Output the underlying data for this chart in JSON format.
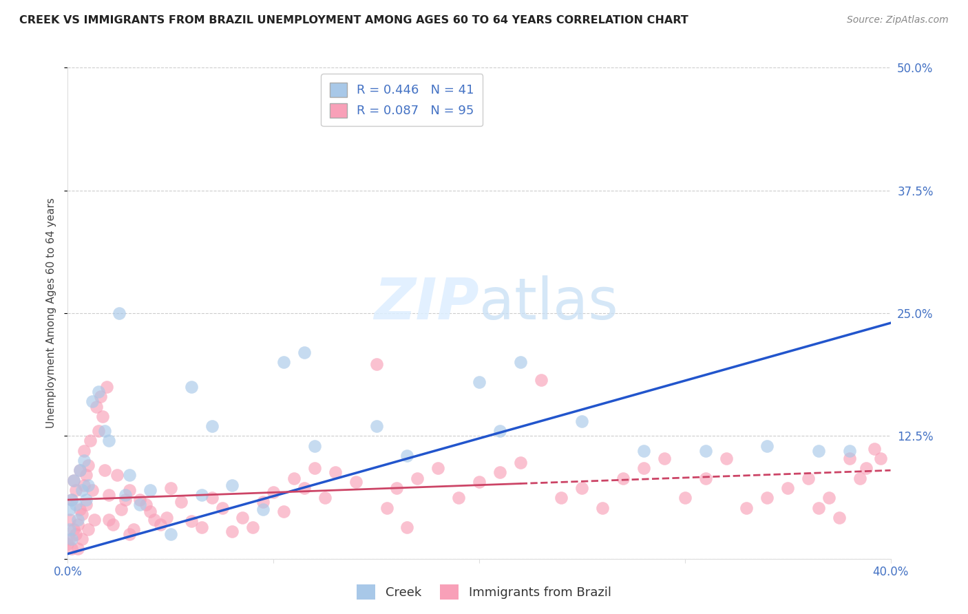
{
  "title": "CREEK VS IMMIGRANTS FROM BRAZIL UNEMPLOYMENT AMONG AGES 60 TO 64 YEARS CORRELATION CHART",
  "source": "Source: ZipAtlas.com",
  "ylabel": "Unemployment Among Ages 60 to 64 years",
  "legend_creek": "Creek",
  "legend_brazil": "Immigrants from Brazil",
  "creek_R": 0.446,
  "creek_N": 41,
  "brazil_R": 0.087,
  "brazil_N": 95,
  "creek_color": "#a8c8e8",
  "brazil_color": "#f8a0b8",
  "creek_line_color": "#2255cc",
  "brazil_line_color": "#cc4466",
  "background_color": "#ffffff",
  "xlim": [
    0.0,
    0.4
  ],
  "ylim": [
    0.0,
    0.5
  ],
  "creek_scatter_x": [
    0.001,
    0.001,
    0.002,
    0.002,
    0.003,
    0.004,
    0.005,
    0.006,
    0.007,
    0.008,
    0.009,
    0.01,
    0.012,
    0.015,
    0.018,
    0.02,
    0.025,
    0.028,
    0.03,
    0.035,
    0.04,
    0.05,
    0.06,
    0.065,
    0.07,
    0.08,
    0.095,
    0.105,
    0.115,
    0.12,
    0.15,
    0.165,
    0.2,
    0.21,
    0.22,
    0.25,
    0.28,
    0.31,
    0.34,
    0.365,
    0.38
  ],
  "creek_scatter_y": [
    0.03,
    0.05,
    0.02,
    0.06,
    0.08,
    0.055,
    0.04,
    0.09,
    0.07,
    0.1,
    0.06,
    0.075,
    0.16,
    0.17,
    0.13,
    0.12,
    0.25,
    0.065,
    0.085,
    0.055,
    0.07,
    0.025,
    0.175,
    0.065,
    0.135,
    0.075,
    0.05,
    0.2,
    0.21,
    0.115,
    0.135,
    0.105,
    0.18,
    0.13,
    0.2,
    0.14,
    0.11,
    0.11,
    0.115,
    0.11,
    0.11
  ],
  "brazil_scatter_x": [
    0.0,
    0.001,
    0.001,
    0.002,
    0.002,
    0.003,
    0.003,
    0.004,
    0.004,
    0.005,
    0.005,
    0.006,
    0.006,
    0.007,
    0.007,
    0.008,
    0.008,
    0.009,
    0.009,
    0.01,
    0.01,
    0.011,
    0.012,
    0.013,
    0.014,
    0.015,
    0.016,
    0.017,
    0.018,
    0.019,
    0.02,
    0.02,
    0.022,
    0.024,
    0.026,
    0.028,
    0.03,
    0.03,
    0.032,
    0.035,
    0.038,
    0.04,
    0.042,
    0.045,
    0.048,
    0.05,
    0.055,
    0.06,
    0.065,
    0.07,
    0.075,
    0.08,
    0.085,
    0.09,
    0.095,
    0.1,
    0.105,
    0.11,
    0.115,
    0.12,
    0.125,
    0.13,
    0.14,
    0.15,
    0.155,
    0.16,
    0.165,
    0.17,
    0.18,
    0.19,
    0.2,
    0.21,
    0.22,
    0.23,
    0.24,
    0.25,
    0.26,
    0.27,
    0.28,
    0.29,
    0.3,
    0.31,
    0.32,
    0.33,
    0.34,
    0.35,
    0.36,
    0.365,
    0.37,
    0.375,
    0.38,
    0.385,
    0.388,
    0.392,
    0.395
  ],
  "brazil_scatter_y": [
    0.015,
    0.02,
    0.04,
    0.01,
    0.06,
    0.03,
    0.08,
    0.025,
    0.07,
    0.035,
    0.01,
    0.05,
    0.09,
    0.045,
    0.02,
    0.075,
    0.11,
    0.085,
    0.055,
    0.095,
    0.03,
    0.12,
    0.07,
    0.04,
    0.155,
    0.13,
    0.165,
    0.145,
    0.09,
    0.175,
    0.065,
    0.04,
    0.035,
    0.085,
    0.05,
    0.06,
    0.07,
    0.025,
    0.03,
    0.06,
    0.055,
    0.048,
    0.04,
    0.035,
    0.042,
    0.072,
    0.058,
    0.038,
    0.032,
    0.062,
    0.052,
    0.028,
    0.042,
    0.032,
    0.058,
    0.068,
    0.048,
    0.082,
    0.072,
    0.092,
    0.062,
    0.088,
    0.078,
    0.198,
    0.052,
    0.072,
    0.032,
    0.082,
    0.092,
    0.062,
    0.078,
    0.088,
    0.098,
    0.182,
    0.062,
    0.072,
    0.052,
    0.082,
    0.092,
    0.102,
    0.062,
    0.082,
    0.102,
    0.052,
    0.062,
    0.072,
    0.082,
    0.052,
    0.062,
    0.042,
    0.102,
    0.082,
    0.092,
    0.112,
    0.102
  ],
  "creek_line_x0": 0.0,
  "creek_line_y0": 0.005,
  "creek_line_x1": 0.4,
  "creek_line_y1": 0.24,
  "brazil_line_x0": 0.0,
  "brazil_line_y0": 0.06,
  "brazil_line_x1": 0.4,
  "brazil_line_y1": 0.09
}
